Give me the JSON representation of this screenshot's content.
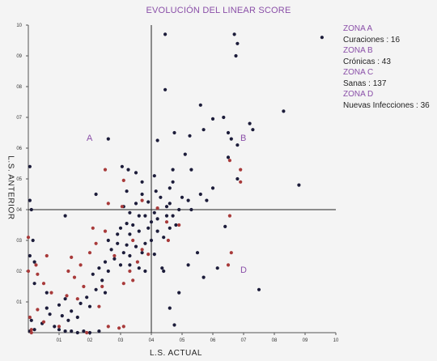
{
  "chart_data": {
    "type": "scatter",
    "title": "EVOLUCIÓN DEL LINEAR SCORE",
    "xlabel": "L.S. ACTUAL",
    "ylabel": "L.S. ANTERIOR",
    "xlim": [
      0,
      10
    ],
    "ylim": [
      0,
      10
    ],
    "x_ticks": [
      "01",
      "02",
      "03",
      "04",
      "05",
      "06",
      "07",
      "08",
      "09",
      "10"
    ],
    "y_ticks": [
      "01",
      "02",
      "03",
      "04",
      "05",
      "06",
      "07",
      "08",
      "09",
      "10"
    ],
    "threshold_x": 4,
    "threshold_y": 4,
    "zone_labels": [
      {
        "label": "A",
        "x": 2.0,
        "y": 6.3
      },
      {
        "label": "B",
        "x": 7.0,
        "y": 6.3
      },
      {
        "label": "D",
        "x": 7.0,
        "y": 2.0
      }
    ],
    "legend": [
      {
        "zone": "ZONA A",
        "text": "Curaciones : 16"
      },
      {
        "zone": "ZONA B",
        "text": "Crónicas : 43"
      },
      {
        "zone": "ZONA C",
        "text": "Sanas : 137"
      },
      {
        "zone": "ZONA D",
        "text": "Nuevas Infecciones : 36"
      }
    ],
    "colors": {
      "dark": "#1c1c3a",
      "red": "#a83a3a",
      "accent": "#8a4fa8"
    },
    "series": [
      {
        "color": "dark",
        "points": [
          [
            4.45,
            9.7
          ],
          [
            6.7,
            9.7
          ],
          [
            6.8,
            9.4
          ],
          [
            6.75,
            9.0
          ],
          [
            9.55,
            9.6
          ],
          [
            4.45,
            7.9
          ],
          [
            5.6,
            7.4
          ],
          [
            8.3,
            7.2
          ],
          [
            6.0,
            6.95
          ],
          [
            6.35,
            7.0
          ],
          [
            7.2,
            6.8
          ],
          [
            7.3,
            6.6
          ],
          [
            5.7,
            6.6
          ],
          [
            4.75,
            6.5
          ],
          [
            6.5,
            6.5
          ],
          [
            2.6,
            6.3
          ],
          [
            6.6,
            6.3
          ],
          [
            6.8,
            6.1
          ],
          [
            4.2,
            6.25
          ],
          [
            5.25,
            6.4
          ],
          [
            5.1,
            5.8
          ],
          [
            3.5,
            5.2
          ],
          [
            3.7,
            4.9
          ],
          [
            4.1,
            5.1
          ],
          [
            4.7,
            5.3
          ],
          [
            5.3,
            5.3
          ],
          [
            6.8,
            5.0
          ],
          [
            6.5,
            5.7
          ],
          [
            8.8,
            4.8
          ],
          [
            3.05,
            5.4
          ],
          [
            3.25,
            5.3
          ],
          [
            2.2,
            4.5
          ],
          [
            3.2,
            4.6
          ],
          [
            3.7,
            4.5
          ],
          [
            4.15,
            4.6
          ],
          [
            4.6,
            4.7
          ],
          [
            4.7,
            4.9
          ],
          [
            5.6,
            4.5
          ],
          [
            6.0,
            4.7
          ],
          [
            5.0,
            4.4
          ],
          [
            5.2,
            4.3
          ],
          [
            5.8,
            4.3
          ],
          [
            4.6,
            4.2
          ],
          [
            3.1,
            4.1
          ],
          [
            3.5,
            4.2
          ],
          [
            3.9,
            4.25
          ],
          [
            4.3,
            4.4
          ],
          [
            4.5,
            4.1
          ],
          [
            4.9,
            4.0
          ],
          [
            5.3,
            4.0
          ],
          [
            3.3,
            3.9
          ],
          [
            3.6,
            3.8
          ],
          [
            3.8,
            3.8
          ],
          [
            4.1,
            3.9
          ],
          [
            4.2,
            3.7
          ],
          [
            4.5,
            3.8
          ],
          [
            4.7,
            3.8
          ],
          [
            4.0,
            3.6
          ],
          [
            3.2,
            3.55
          ],
          [
            3.4,
            3.5
          ],
          [
            3.0,
            3.4
          ],
          [
            2.9,
            3.2
          ],
          [
            3.3,
            3.2
          ],
          [
            3.6,
            3.3
          ],
          [
            3.9,
            3.4
          ],
          [
            4.2,
            3.3
          ],
          [
            4.4,
            3.1
          ],
          [
            4.6,
            3.4
          ],
          [
            4.8,
            3.5
          ],
          [
            2.6,
            3.0
          ],
          [
            2.9,
            2.9
          ],
          [
            3.2,
            2.85
          ],
          [
            3.5,
            2.8
          ],
          [
            3.8,
            2.9
          ],
          [
            4.0,
            3.0
          ],
          [
            2.7,
            2.7
          ],
          [
            3.1,
            2.6
          ],
          [
            3.3,
            2.5
          ],
          [
            3.7,
            2.6
          ],
          [
            4.1,
            2.55
          ],
          [
            2.5,
            2.3
          ],
          [
            2.8,
            2.4
          ],
          [
            3.0,
            2.2
          ],
          [
            3.3,
            2.2
          ],
          [
            3.6,
            2.1
          ],
          [
            3.8,
            2.0
          ],
          [
            2.3,
            2.1
          ],
          [
            2.6,
            2.0
          ],
          [
            2.1,
            1.9
          ],
          [
            2.4,
            1.7
          ],
          [
            2.2,
            1.4
          ],
          [
            2.5,
            1.3
          ],
          [
            1.9,
            1.15
          ],
          [
            1.7,
            0.95
          ],
          [
            2.0,
            0.85
          ],
          [
            1.2,
            1.1
          ],
          [
            1.0,
            0.9
          ],
          [
            1.4,
            0.7
          ],
          [
            1.1,
            0.55
          ],
          [
            1.3,
            0.4
          ],
          [
            1.6,
            0.5
          ],
          [
            0.85,
            0.2
          ],
          [
            1.0,
            0.1
          ],
          [
            1.2,
            0.05
          ],
          [
            1.4,
            0.05
          ],
          [
            1.6,
            0.0
          ],
          [
            1.8,
            0.05
          ],
          [
            2.0,
            0.0
          ],
          [
            2.3,
            0.05
          ],
          [
            0.6,
            0.8
          ],
          [
            0.7,
            0.6
          ],
          [
            0.45,
            0.3
          ],
          [
            0.1,
            0.4
          ],
          [
            0.05,
            0.05
          ],
          [
            0.2,
            0.1
          ],
          [
            0.05,
            2.5
          ],
          [
            0.2,
            1.6
          ],
          [
            0.05,
            5.4
          ],
          [
            0.05,
            4.3
          ],
          [
            0.1,
            4.0
          ],
          [
            0.15,
            3.0
          ],
          [
            1.2,
            3.8
          ],
          [
            4.35,
            2.1
          ],
          [
            4.6,
            0.8
          ],
          [
            4.75,
            0.25
          ],
          [
            4.9,
            1.3
          ],
          [
            5.5,
            2.6
          ],
          [
            6.15,
            2.1
          ],
          [
            6.4,
            3.45
          ],
          [
            7.5,
            1.4
          ],
          [
            0.2,
            2.3
          ],
          [
            0.6,
            1.3
          ],
          [
            4.4,
            2.0
          ],
          [
            5.2,
            2.2
          ],
          [
            5.7,
            1.8
          ]
        ]
      },
      {
        "color": "red",
        "points": [
          [
            2.5,
            5.3
          ],
          [
            3.1,
            4.95
          ],
          [
            2.6,
            4.2
          ],
          [
            3.05,
            4.1
          ],
          [
            3.7,
            4.3
          ],
          [
            4.2,
            4.05
          ],
          [
            4.5,
            3.6
          ],
          [
            4.9,
            3.5
          ],
          [
            6.55,
            3.8
          ],
          [
            4.55,
            3.0
          ],
          [
            6.9,
            5.3
          ],
          [
            6.55,
            5.6
          ],
          [
            6.9,
            4.9
          ],
          [
            6.5,
            2.2
          ],
          [
            6.6,
            2.6
          ],
          [
            3.4,
            3.0
          ],
          [
            3.7,
            2.7
          ],
          [
            3.9,
            2.55
          ],
          [
            2.1,
            3.4
          ],
          [
            2.5,
            3.3
          ],
          [
            2.2,
            2.9
          ],
          [
            2.0,
            2.6
          ],
          [
            1.7,
            2.2
          ],
          [
            1.4,
            2.45
          ],
          [
            1.3,
            2.0
          ],
          [
            1.5,
            1.8
          ],
          [
            1.8,
            1.5
          ],
          [
            1.25,
            1.2
          ],
          [
            1.6,
            1.1
          ],
          [
            2.3,
            0.85
          ],
          [
            1.0,
            0.2
          ],
          [
            0.75,
            1.3
          ],
          [
            0.5,
            1.6
          ],
          [
            0.6,
            2.5
          ],
          [
            0.3,
            1.9
          ],
          [
            0.25,
            2.2
          ],
          [
            0.3,
            0.75
          ],
          [
            0.1,
            0.1
          ],
          [
            0.05,
            0.5
          ],
          [
            0.0,
            3.1
          ],
          [
            0.0,
            2.0
          ],
          [
            2.6,
            0.2
          ],
          [
            2.95,
            0.15
          ],
          [
            3.1,
            0.2
          ],
          [
            3.1,
            1.6
          ],
          [
            3.3,
            2.0
          ],
          [
            3.55,
            2.3
          ],
          [
            0.5,
            0.35
          ],
          [
            0.1,
            0.0
          ],
          [
            1.9,
            0.0
          ],
          [
            3.4,
            1.7
          ],
          [
            2.8,
            2.5
          ],
          [
            2.4,
            1.5
          ]
        ]
      }
    ]
  }
}
